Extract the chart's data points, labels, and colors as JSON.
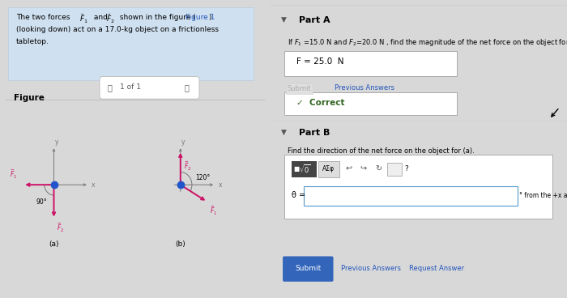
{
  "bg_left": "#e8eef5",
  "bg_right": "#f5f5f5",
  "bg_overall": "#d8d8d8",
  "left_text_bg": "#cfe0f0",
  "arrow_color": "#cc1166",
  "axis_color": "#777777",
  "dot_color": "#2255cc",
  "link_color": "#2255bb",
  "correct_color": "#336622",
  "submit_btn_color": "#3366bb",
  "part_a_title": "Part A",
  "part_b_title": "Part B",
  "part_a_subtext": "If F₁ =15.0 N and F₂=20.0 N , find the magnitude of the net force on the object for (a).",
  "answer_text": "F = 25.0  N",
  "submit_label": "Submit",
  "prev_answers": "Previous Answers",
  "correct_text": "✓  Correct",
  "part_b_subtext": "Find the direction of the net force on the object for (a).",
  "theta_label": "θ =",
  "from_axis": "° from the +x axis",
  "submit_btn": "Submit",
  "prev_answers2": "Previous Answers",
  "req_answer": "Request Answer",
  "nav_text": "1 of 1",
  "label_a": "(a)",
  "label_b": "(b)",
  "angle_a_label": "90°",
  "angle_b_label": "120°",
  "figure_label": "Figure"
}
